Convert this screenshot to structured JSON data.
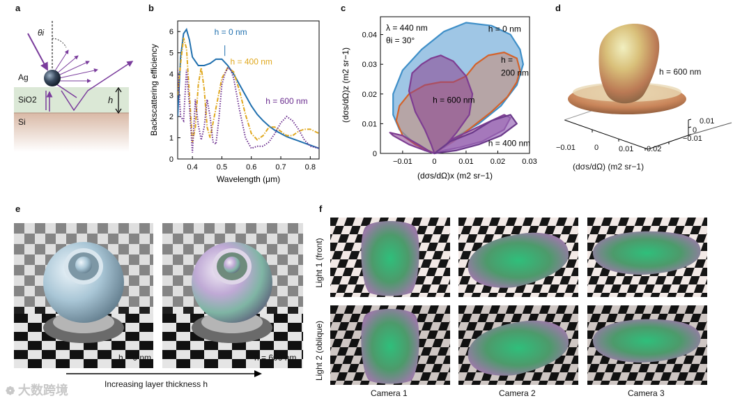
{
  "panels": {
    "a": {
      "label": "a",
      "angle_label": "θi",
      "ag_label": "Ag",
      "sio2_label": "SiO2",
      "si_label": "Si",
      "h_label": "h"
    },
    "b": {
      "label": "b"
    },
    "c": {
      "label": "c"
    },
    "d": {
      "label": "d"
    },
    "e": {
      "label": "e",
      "left_caption": "h = 0 nm",
      "right_caption": "h = 600 nm",
      "arrow_label": "Increasing layer thickness h"
    },
    "f": {
      "label": "f",
      "row_labels": [
        "Light 1 (front)",
        "Light 2 (oblique)"
      ],
      "col_labels": [
        "Camera 1",
        "Camera 2",
        "Camera 3"
      ]
    }
  },
  "watermark": "大数跨境",
  "chart_data": [
    {
      "id": "b",
      "type": "line",
      "xlabel": "Wavelength (μm)",
      "ylabel": "Backscattering efficiency",
      "xlim": [
        0.35,
        0.83
      ],
      "ylim": [
        0,
        6.5
      ],
      "xticks": [
        "0.4",
        "0.5",
        "0.6",
        "0.7",
        "0.8"
      ],
      "yticks": [
        "0",
        "1",
        "2",
        "3",
        "4",
        "5",
        "6"
      ],
      "series": [
        {
          "name": "h = 0 nm",
          "color": "#1f6fae",
          "style": "solid",
          "x": [
            0.35,
            0.36,
            0.37,
            0.38,
            0.39,
            0.4,
            0.42,
            0.44,
            0.46,
            0.48,
            0.5,
            0.52,
            0.54,
            0.56,
            0.58,
            0.6,
            0.62,
            0.64,
            0.66,
            0.68,
            0.7,
            0.72,
            0.74,
            0.76,
            0.78,
            0.8,
            0.83
          ],
          "y": [
            2.0,
            4.8,
            5.9,
            6.1,
            5.6,
            4.8,
            4.4,
            4.4,
            4.5,
            4.7,
            4.7,
            4.4,
            4.0,
            3.5,
            3.0,
            2.5,
            2.1,
            1.8,
            1.55,
            1.35,
            1.2,
            1.05,
            0.95,
            0.85,
            0.75,
            0.65,
            0.5
          ]
        },
        {
          "name": "h = 400 nm",
          "color": "#e0a81e",
          "style": "dashdot",
          "x": [
            0.35,
            0.36,
            0.37,
            0.38,
            0.39,
            0.4,
            0.41,
            0.42,
            0.43,
            0.44,
            0.45,
            0.46,
            0.48,
            0.5,
            0.52,
            0.54,
            0.56,
            0.58,
            0.6,
            0.62,
            0.64,
            0.66,
            0.68,
            0.7,
            0.72,
            0.74,
            0.76,
            0.78,
            0.8,
            0.83
          ],
          "y": [
            3.0,
            4.5,
            5.7,
            5.2,
            3.0,
            0.8,
            1.5,
            3.5,
            4.3,
            3.3,
            1.5,
            1.0,
            2.4,
            3.8,
            4.3,
            4.1,
            3.2,
            2.1,
            1.2,
            0.9,
            1.1,
            1.5,
            1.5,
            1.3,
            1.1,
            1.1,
            1.3,
            1.4,
            1.4,
            1.2
          ]
        },
        {
          "name": "h = 600 nm",
          "color": "#6a2d8e",
          "style": "dotted",
          "x": [
            0.35,
            0.36,
            0.37,
            0.38,
            0.39,
            0.4,
            0.41,
            0.42,
            0.43,
            0.44,
            0.45,
            0.46,
            0.47,
            0.48,
            0.49,
            0.5,
            0.51,
            0.52,
            0.53,
            0.54,
            0.56,
            0.58,
            0.6,
            0.62,
            0.64,
            0.66,
            0.68,
            0.7,
            0.72,
            0.74,
            0.76,
            0.78,
            0.8,
            0.83
          ],
          "y": [
            4.2,
            2.0,
            1.8,
            4.2,
            2.5,
            0.3,
            2.8,
            1.6,
            0.9,
            1.5,
            2.8,
            2.0,
            0.8,
            0.7,
            1.9,
            3.5,
            4.0,
            4.3,
            4.2,
            3.8,
            2.3,
            1.0,
            0.5,
            0.6,
            0.6,
            0.8,
            1.2,
            1.7,
            2.0,
            1.8,
            1.4,
            0.9,
            0.6,
            0.5
          ]
        }
      ],
      "annotations": [
        {
          "text": "h = 0 nm",
          "series": "h = 0 nm"
        },
        {
          "text": "h = 400 nm",
          "series": "h = 400 nm"
        },
        {
          "text": "h = 600 nm",
          "series": "h = 600 nm"
        }
      ]
    },
    {
      "id": "c",
      "type": "polar-scatter-pattern",
      "xlabel": "(dσs/dΩ)x (m2 sr−1)",
      "ylabel": "(dσs/dΩ)z (m2 sr−1)",
      "xlim": [
        -0.017,
        0.03
      ],
      "ylim": [
        0,
        0.046
      ],
      "xticks": [
        "−0.01",
        "0",
        "0.01",
        "0.02",
        "0.03"
      ],
      "yticks": [
        "0",
        "0.01",
        "0.02",
        "0.03",
        "0.04"
      ],
      "info_lines": [
        "λ = 440 nm",
        "θi = 30°"
      ],
      "series": [
        {
          "name": "h = 0 nm",
          "color": "#3f8fc8",
          "x": [
            0,
            0.006,
            0.014,
            0.021,
            0.026,
            0.028,
            0.027,
            0.024,
            0.018,
            0.01,
            0.003,
            -0.004,
            -0.01,
            -0.013,
            -0.013,
            -0.011,
            -0.007,
            -0.003,
            0
          ],
          "y": [
            0,
            0.005,
            0.01,
            0.016,
            0.023,
            0.03,
            0.035,
            0.04,
            0.043,
            0.044,
            0.041,
            0.035,
            0.028,
            0.02,
            0.013,
            0.008,
            0.004,
            0.001,
            0
          ]
        },
        {
          "name": "h = 200 nm",
          "color": "#d4622a",
          "x": [
            0,
            0.006,
            0.012,
            0.018,
            0.023,
            0.026,
            0.027,
            0.026,
            0.022,
            0.017,
            0.013,
            0.01,
            0.006,
            0.002,
            -0.003,
            -0.008,
            -0.011,
            -0.012,
            -0.01,
            -0.006,
            -0.002,
            0
          ],
          "y": [
            0,
            0.004,
            0.009,
            0.014,
            0.019,
            0.024,
            0.028,
            0.032,
            0.034,
            0.033,
            0.03,
            0.026,
            0.024,
            0.024,
            0.023,
            0.02,
            0.016,
            0.011,
            0.006,
            0.003,
            0.001,
            0
          ]
        },
        {
          "name": "h = 600 nm",
          "color": "#7e3d92",
          "x": [
            0,
            -0.001,
            -0.003,
            -0.006,
            -0.008,
            -0.007,
            -0.004,
            -0.001,
            0.002,
            0.006,
            0.01,
            0.012,
            0.011,
            0.007,
            0.003,
            0.006,
            0.012,
            0.018,
            0.022,
            0.024,
            0.022,
            0.015,
            0.008,
            0.003,
            0,
            -0.003,
            -0.008,
            -0.013,
            -0.014,
            -0.01,
            -0.005,
            -0.002,
            0
          ],
          "y": [
            0,
            0.003,
            0.008,
            0.014,
            0.021,
            0.027,
            0.03,
            0.032,
            0.033,
            0.031,
            0.026,
            0.02,
            0.013,
            0.007,
            0.002,
            0.005,
            0.008,
            0.011,
            0.013,
            0.012,
            0.008,
            0.004,
            0.002,
            0.001,
            0,
            0.001,
            0.003,
            0.006,
            0.007,
            0.006,
            0.003,
            0.001,
            0
          ]
        },
        {
          "name": "h = 400 nm",
          "color": "#6b3a8a",
          "x": [
            0,
            0.005,
            0.012,
            0.018,
            0.024,
            0.026,
            0.021,
            0.014,
            0.007,
            0.002,
            0
          ],
          "y": [
            0,
            0.004,
            0.007,
            0.011,
            0.013,
            0.01,
            0.006,
            0.003,
            0.001,
            0.0003,
            0
          ]
        }
      ],
      "labels": [
        "h = 0 nm",
        "h =",
        "200 nm",
        "h = 600 nm",
        "h = 400 nm"
      ]
    },
    {
      "id": "d",
      "type": "3d-surface",
      "axis_label": "(dσs/dΩ) (m2 sr−1)",
      "xticks": [
        "−0.01",
        "0",
        "0.01",
        "0.02"
      ],
      "yticks": [
        "0.01",
        "0",
        "−0.01"
      ],
      "annotation": "h = 600 nm"
    }
  ]
}
